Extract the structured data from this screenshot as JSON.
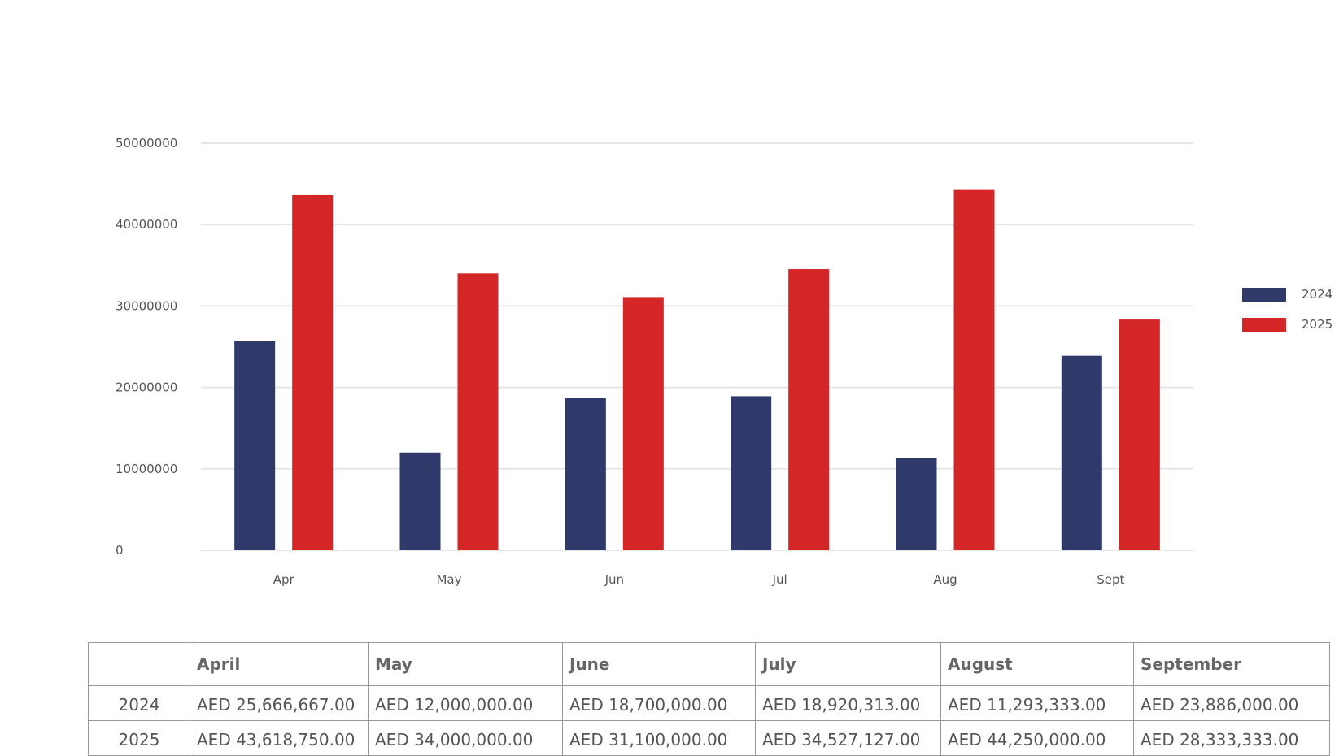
{
  "chart_data": {
    "type": "bar",
    "title": "",
    "xlabel": "",
    "ylabel": "",
    "categories": [
      "Apr",
      "May",
      "Jun",
      "Jul",
      "Aug",
      "Sept"
    ],
    "series": [
      {
        "name": "2024",
        "color": "#2f3a6b",
        "values": [
          25666667,
          12000000,
          18700000,
          18920313,
          11293333,
          23886000
        ]
      },
      {
        "name": "2025",
        "color": "#d42627",
        "values": [
          43618750,
          34000000,
          31100000,
          34527127,
          44250000,
          28333333
        ]
      }
    ],
    "ylim": [
      0,
      50000000
    ],
    "yticks": [
      "0",
      "10000000",
      "20000000",
      "30000000",
      "40000000",
      "50000000"
    ],
    "grid": true,
    "legend": "right"
  },
  "table": {
    "headers": [
      "",
      "April",
      "May",
      "June",
      "July",
      "August",
      "September"
    ],
    "rows": [
      {
        "year": "2024",
        "values": [
          "AED 25,666,667.00",
          "AED 12,000,000.00",
          "AED 18,700,000.00",
          "AED 18,920,313.00",
          "AED 11,293,333.00",
          "AED 23,886,000.00"
        ]
      },
      {
        "year": "2025",
        "values": [
          "AED 43,618,750.00",
          "AED 34,000,000.00",
          "AED 31,100,000.00",
          "AED 34,527,127.00",
          "AED 44,250,000.00",
          "AED 28,333,333.00"
        ]
      }
    ]
  }
}
